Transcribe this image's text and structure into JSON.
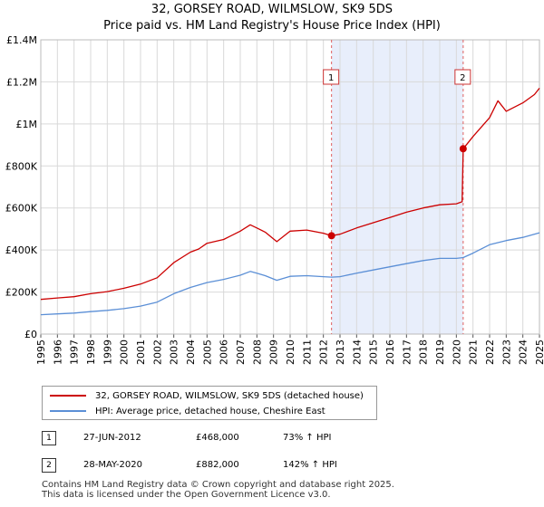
{
  "title_line1": "32, GORSEY ROAD, WILMSLOW, SK9 5DS",
  "title_line2": "Price paid vs. HM Land Registry's House Price Index (HPI)",
  "chart_data": {
    "type": "line",
    "xlim": [
      1995,
      2025
    ],
    "ylim": [
      0,
      1400000
    ],
    "y_ticks": [
      {
        "value": 0,
        "label": "£0"
      },
      {
        "value": 200000,
        "label": "£200K"
      },
      {
        "value": 400000,
        "label": "£400K"
      },
      {
        "value": 600000,
        "label": "£600K"
      },
      {
        "value": 800000,
        "label": "£800K"
      },
      {
        "value": 1000000,
        "label": "£1M"
      },
      {
        "value": 1200000,
        "label": "£1.2M"
      },
      {
        "value": 1400000,
        "label": "£1.4M"
      }
    ],
    "x_ticks": [
      "1995",
      "1996",
      "1997",
      "1998",
      "1999",
      "2000",
      "2001",
      "2002",
      "2003",
      "2004",
      "2005",
      "2006",
      "2007",
      "2008",
      "2009",
      "2010",
      "2011",
      "2012",
      "2013",
      "2014",
      "2015",
      "2016",
      "2017",
      "2018",
      "2019",
      "2020",
      "2021",
      "2022",
      "2023",
      "2024",
      "2025"
    ],
    "grid": true,
    "shaded_range": [
      2012.49,
      2020.41
    ],
    "series": [
      {
        "name": "32, GORSEY ROAD, WILMSLOW, SK9 5DS (detached house)",
        "color": "#cc0000",
        "x": [
          1995.0,
          1996.0,
          1997.0,
          1998.0,
          1999.0,
          2000.0,
          2001.0,
          2002.0,
          2003.0,
          2004.0,
          2004.5,
          2005.0,
          2006.0,
          2007.0,
          2007.6,
          2008.0,
          2008.5,
          2009.2,
          2010.0,
          2011.0,
          2012.0,
          2012.49,
          2013.0,
          2014.0,
          2015.0,
          2016.0,
          2017.0,
          2018.0,
          2019.0,
          2020.0,
          2020.35,
          2020.41,
          2021.0,
          2022.0,
          2022.5,
          2023.0,
          2024.0,
          2024.7,
          2025.0
        ],
        "values": [
          165000,
          172000,
          178000,
          192000,
          202000,
          218000,
          238000,
          268000,
          340000,
          390000,
          405000,
          432000,
          450000,
          490000,
          520000,
          505000,
          485000,
          440000,
          490000,
          495000,
          480000,
          468000,
          475000,
          505000,
          530000,
          555000,
          580000,
          600000,
          615000,
          620000,
          630000,
          882000,
          940000,
          1030000,
          1110000,
          1060000,
          1100000,
          1140000,
          1170000
        ]
      },
      {
        "name": "HPI: Average price, detached house, Cheshire East",
        "color": "#5b8fd6",
        "x": [
          1995.0,
          1996.0,
          1997.0,
          1998.0,
          1999.0,
          2000.0,
          2001.0,
          2002.0,
          2003.0,
          2004.0,
          2005.0,
          2006.0,
          2007.0,
          2007.6,
          2008.0,
          2008.5,
          2009.2,
          2010.0,
          2011.0,
          2012.0,
          2012.49,
          2013.0,
          2014.0,
          2015.0,
          2016.0,
          2017.0,
          2018.0,
          2019.0,
          2020.0,
          2020.41,
          2021.0,
          2022.0,
          2023.0,
          2024.0,
          2025.0
        ],
        "values": [
          92000,
          96000,
          100000,
          107000,
          113000,
          121000,
          133000,
          152000,
          192000,
          222000,
          245000,
          260000,
          280000,
          298000,
          290000,
          278000,
          256000,
          275000,
          278000,
          273000,
          271000,
          273000,
          290000,
          305000,
          320000,
          335000,
          350000,
          360000,
          360000,
          364000,
          385000,
          425000,
          445000,
          460000,
          482000
        ]
      }
    ],
    "transactions": [
      {
        "label": "1",
        "date": "27-JUN-2012",
        "x": 2012.49,
        "price": "£468,000",
        "value": 468000,
        "hpi": "73% ↑ HPI"
      },
      {
        "label": "2",
        "date": "28-MAY-2020",
        "x": 2020.41,
        "price": "£882,000",
        "value": 882000,
        "hpi": "142% ↑ HPI"
      }
    ]
  },
  "legend": {
    "property": "32, GORSEY ROAD, WILMSLOW, SK9 5DS (detached house)",
    "hpi": "HPI: Average price, detached house, Cheshire East",
    "property_color": "#cc0000",
    "hpi_color": "#5b8fd6"
  },
  "transactions_table": [
    {
      "label": "1",
      "date": "27-JUN-2012",
      "price": "£468,000",
      "hpi": "73% ↑ HPI"
    },
    {
      "label": "2",
      "date": "28-MAY-2020",
      "price": "£882,000",
      "hpi": "142% ↑ HPI"
    }
  ],
  "footer_line1": "Contains HM Land Registry data © Crown copyright and database right 2025.",
  "footer_line2": "This data is licensed under the Open Government Licence v3.0."
}
